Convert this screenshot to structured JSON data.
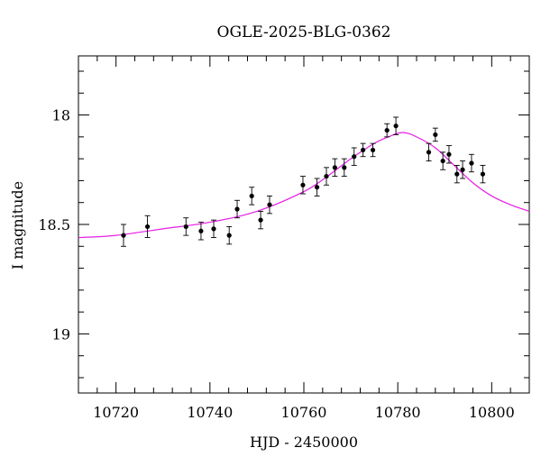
{
  "chart_data": {
    "type": "scatter",
    "title": "OGLE-2025-BLG-0362",
    "xlabel": "HJD - 2450000",
    "ylabel": "I magnitude",
    "xlim": [
      10712,
      10808
    ],
    "ylim": [
      19.27,
      17.73
    ],
    "y_inverted": true,
    "grid": false,
    "x_major_ticks": [
      10720,
      10740,
      10760,
      10780,
      10800
    ],
    "x_tick_labels": [
      "10720",
      "10740",
      "10760",
      "10780",
      "10800"
    ],
    "x_minor_step": 4,
    "y_major_ticks": [
      18,
      18.5,
      19
    ],
    "y_tick_labels": [
      "18",
      "18.5",
      "19"
    ],
    "y_minor_step": 0.1,
    "series": [
      {
        "type": "scatter-errorbars",
        "x": [
          10721.6,
          10726.7,
          10734.9,
          10738.1,
          10740.8,
          10744.1,
          10745.8,
          10748.9,
          10750.8,
          10752.7,
          10759.8,
          10762.8,
          10764.8,
          10766.6,
          10768.6,
          10770.7,
          10772.6,
          10774.7,
          10777.7,
          10779.6,
          10786.6,
          10788.0,
          10789.6,
          10790.9,
          10792.6,
          10793.8,
          10795.7,
          10798.1
        ],
        "y": [
          18.55,
          18.51,
          18.51,
          18.53,
          18.52,
          18.55,
          18.43,
          18.37,
          18.48,
          18.41,
          18.32,
          18.33,
          18.28,
          18.24,
          18.24,
          18.19,
          18.16,
          18.16,
          18.07,
          18.05,
          18.17,
          18.09,
          18.21,
          18.18,
          18.27,
          18.25,
          18.22,
          18.27
        ],
        "yerr": [
          0.05,
          0.05,
          0.04,
          0.04,
          0.04,
          0.04,
          0.04,
          0.04,
          0.04,
          0.04,
          0.04,
          0.04,
          0.04,
          0.04,
          0.04,
          0.04,
          0.03,
          0.03,
          0.03,
          0.04,
          0.04,
          0.03,
          0.04,
          0.04,
          0.04,
          0.04,
          0.04,
          0.04
        ],
        "color": "#000000"
      },
      {
        "type": "line",
        "model": "microlensing-fit",
        "x": [
          10712,
          10720,
          10730,
          10740,
          10750,
          10760,
          10765,
          10770,
          10775,
          10778,
          10781,
          10784,
          10788,
          10792,
          10796,
          10800,
          10804,
          10808
        ],
        "y": [
          18.56,
          18.55,
          18.52,
          18.49,
          18.44,
          18.35,
          18.28,
          18.2,
          18.13,
          18.1,
          18.08,
          18.1,
          18.15,
          18.23,
          18.31,
          18.37,
          18.41,
          18.44
        ],
        "color": "#e51ee5"
      }
    ]
  }
}
